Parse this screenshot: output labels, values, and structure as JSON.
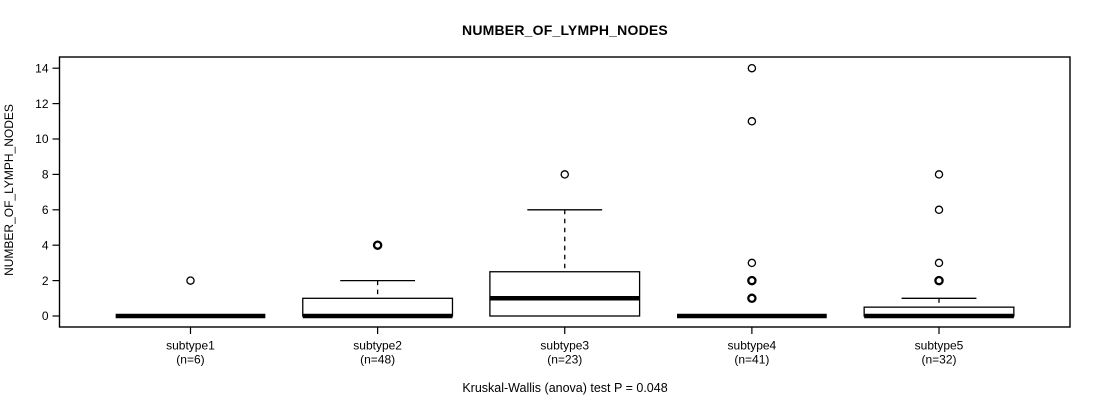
{
  "chart_data": {
    "type": "boxplot",
    "title": "NUMBER_OF_LYMPH_NODES",
    "ylabel": "NUMBER_OF_LYMPH_NODES",
    "xlabel": "",
    "footer": "Kruskal-Wallis (anova) test P = 0.048",
    "stat_test": "Kruskal-Wallis (anova)",
    "p_value": "0.048",
    "ylim": [
      -0.6,
      14.6
    ],
    "yticks": [
      0,
      2,
      4,
      6,
      8,
      10,
      12,
      14
    ],
    "grid": false,
    "legend": null,
    "colors": {
      "line": "#000000",
      "box_fill": "#ffffff",
      "background": "#ffffff"
    },
    "groups": [
      {
        "label": "subtype1",
        "n_label": "(n=6)",
        "n": 6,
        "q1": 0,
        "median": 0,
        "q3": 0,
        "whisker_low": 0,
        "whisker_high": 0,
        "outliers": [
          {
            "value": 2,
            "emphasis": false
          }
        ]
      },
      {
        "label": "subtype2",
        "n_label": "(n=48)",
        "n": 48,
        "q1": 0,
        "median": 0,
        "q3": 1,
        "whisker_low": 0,
        "whisker_high": 2,
        "outliers": [
          {
            "value": 4,
            "emphasis": true
          }
        ]
      },
      {
        "label": "subtype3",
        "n_label": "(n=23)",
        "n": 23,
        "q1": 0,
        "median": 1,
        "q3": 2.5,
        "whisker_low": 0,
        "whisker_high": 6,
        "outliers": [
          {
            "value": 8,
            "emphasis": false
          }
        ]
      },
      {
        "label": "subtype4",
        "n_label": "(n=41)",
        "n": 41,
        "q1": 0,
        "median": 0,
        "q3": 0,
        "whisker_low": 0,
        "whisker_high": 0,
        "outliers": [
          {
            "value": 1,
            "emphasis": true
          },
          {
            "value": 2,
            "emphasis": true
          },
          {
            "value": 3,
            "emphasis": false
          },
          {
            "value": 11,
            "emphasis": false
          },
          {
            "value": 14,
            "emphasis": false
          }
        ]
      },
      {
        "label": "subtype5",
        "n_label": "(n=32)",
        "n": 32,
        "q1": 0,
        "median": 0,
        "q3": 0.5,
        "whisker_low": 0,
        "whisker_high": 1,
        "outliers": [
          {
            "value": 2,
            "emphasis": true
          },
          {
            "value": 3,
            "emphasis": false
          },
          {
            "value": 6,
            "emphasis": false
          },
          {
            "value": 8,
            "emphasis": false
          }
        ]
      }
    ]
  }
}
